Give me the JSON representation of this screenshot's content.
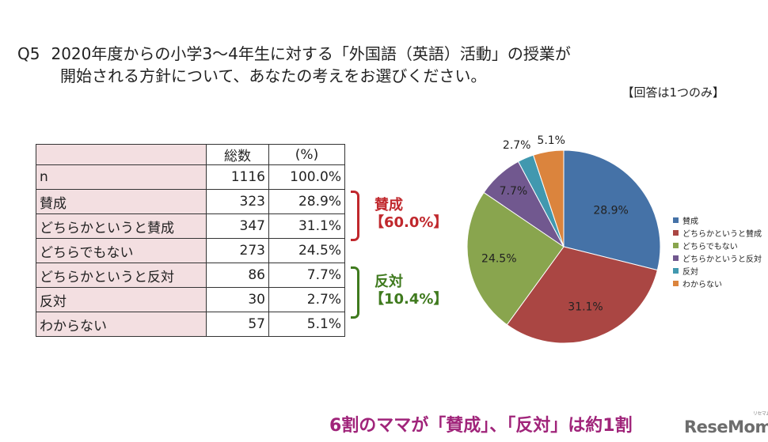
{
  "question": {
    "number": "Q5",
    "line1": "2020年度からの小学3～4年生に対する「外国語（英語）活動」の授業が",
    "line2": "開始される方針について、あなたの考えをお選びください。",
    "note": "【回答は1つのみ】"
  },
  "table": {
    "headers": [
      "総数",
      "(%)"
    ],
    "rows": [
      {
        "label": "n",
        "count": "1116",
        "pct": "100.0%"
      },
      {
        "label": "賛成",
        "count": "323",
        "pct": "28.9%"
      },
      {
        "label": "どちらかというと賛成",
        "count": "347",
        "pct": "31.1%"
      },
      {
        "label": "どちらでもない",
        "count": "273",
        "pct": "24.5%"
      },
      {
        "label": "どちらかというと反対",
        "count": "86",
        "pct": "7.7%"
      },
      {
        "label": "反対",
        "count": "30",
        "pct": "2.7%"
      },
      {
        "label": "わからない",
        "count": "57",
        "pct": "5.1%"
      }
    ]
  },
  "groups": [
    {
      "label": "賛成",
      "value": "【60.0%】",
      "color": "#c0282d"
    },
    {
      "label": "反対",
      "value": "【10.4%】",
      "color": "#3f7a1e"
    }
  ],
  "chart_data": {
    "type": "pie",
    "categories": [
      "賛成",
      "どちらかというと賛成",
      "どちらでもない",
      "どちらかというと反対",
      "反対",
      "わからない"
    ],
    "values": [
      28.9,
      31.1,
      24.5,
      7.7,
      2.7,
      5.1
    ],
    "value_labels": [
      "28.9%",
      "31.1%",
      "24.5%",
      "7.7%",
      "2.7%",
      "5.1%"
    ],
    "colors": [
      "#4572a7",
      "#aa4643",
      "#89a54e",
      "#71588f",
      "#4198af",
      "#db843d"
    ],
    "start": "12 o'clock, clockwise",
    "legend_position": "right"
  },
  "footer": "6割のママが「賛成」、「反対」は約1割",
  "logo": {
    "text": "ReseMom",
    "tag": "リセマム"
  }
}
